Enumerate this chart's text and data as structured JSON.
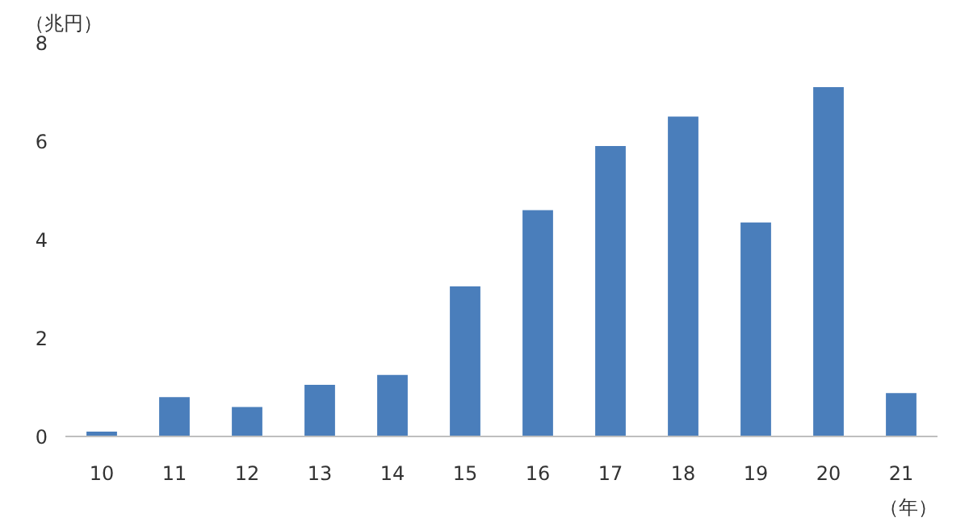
{
  "chart_data": {
    "type": "bar",
    "ylabel": "（兆円）",
    "xlabel": "（年）",
    "categories": [
      "10",
      "11",
      "12",
      "13",
      "14",
      "15",
      "16",
      "17",
      "18",
      "19",
      "20",
      "21"
    ],
    "values": [
      0.1,
      0.8,
      0.6,
      1.05,
      1.25,
      3.05,
      4.6,
      5.9,
      6.5,
      4.35,
      7.1,
      0.88
    ],
    "color": "#4a7ebb",
    "ylim": [
      0,
      8
    ],
    "yticks": [
      0,
      2,
      4,
      6,
      8
    ],
    "grid": false
  }
}
